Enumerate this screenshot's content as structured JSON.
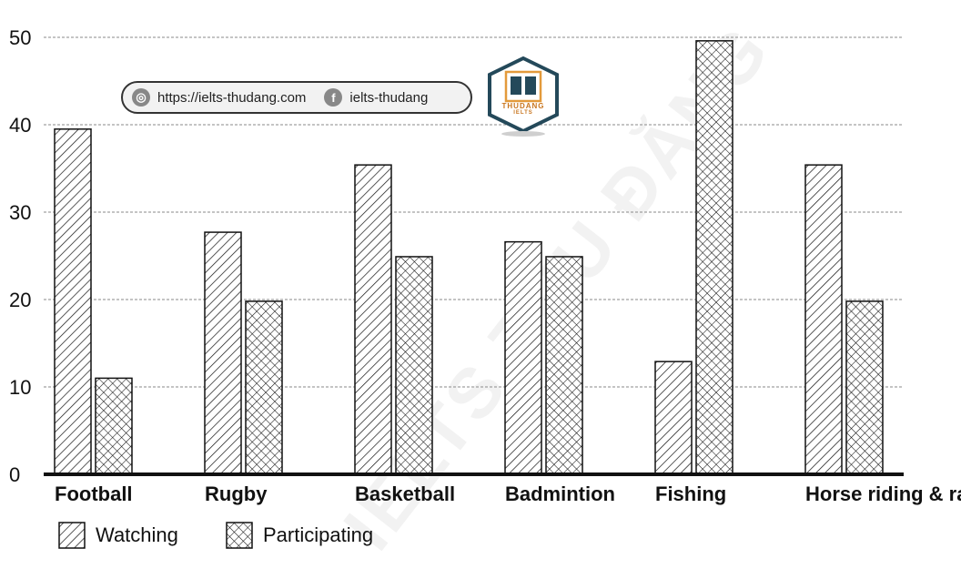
{
  "watermark": {
    "website": "https://ielts-thudang.com",
    "facebook": "ielts-thudang",
    "logo_text": "THUDANG",
    "logo_sub": "IELTS",
    "diagonal_text": "IELTS THU ĐĂNG"
  },
  "chart_data": {
    "type": "bar",
    "title": "",
    "xlabel": "",
    "ylabel": "",
    "ylim": [
      0,
      50
    ],
    "yticks": [
      0,
      10,
      20,
      30,
      40,
      50
    ],
    "grid": "horizontal dashed",
    "legend_position": "bottom-left",
    "categories": [
      "Football",
      "Rugby",
      "Basketball",
      "Badmintion",
      "Fishing",
      "Horse riding & racing"
    ],
    "series": [
      {
        "name": "Watching",
        "pattern": "diagonal-hatch",
        "values": [
          39.5,
          27.7,
          35.4,
          26.6,
          12.9,
          35.4
        ]
      },
      {
        "name": "Participating",
        "pattern": "cross-hatch",
        "values": [
          11,
          19.8,
          24.9,
          24.9,
          49.6,
          19.8
        ]
      }
    ],
    "colors": {
      "bar_fill": "#ffffff",
      "bar_stroke": "#111111",
      "grid": "#8a8a8a",
      "axis": "#111111",
      "logo_accent": "#e39a3b",
      "logo_dark": "#24495a"
    }
  }
}
